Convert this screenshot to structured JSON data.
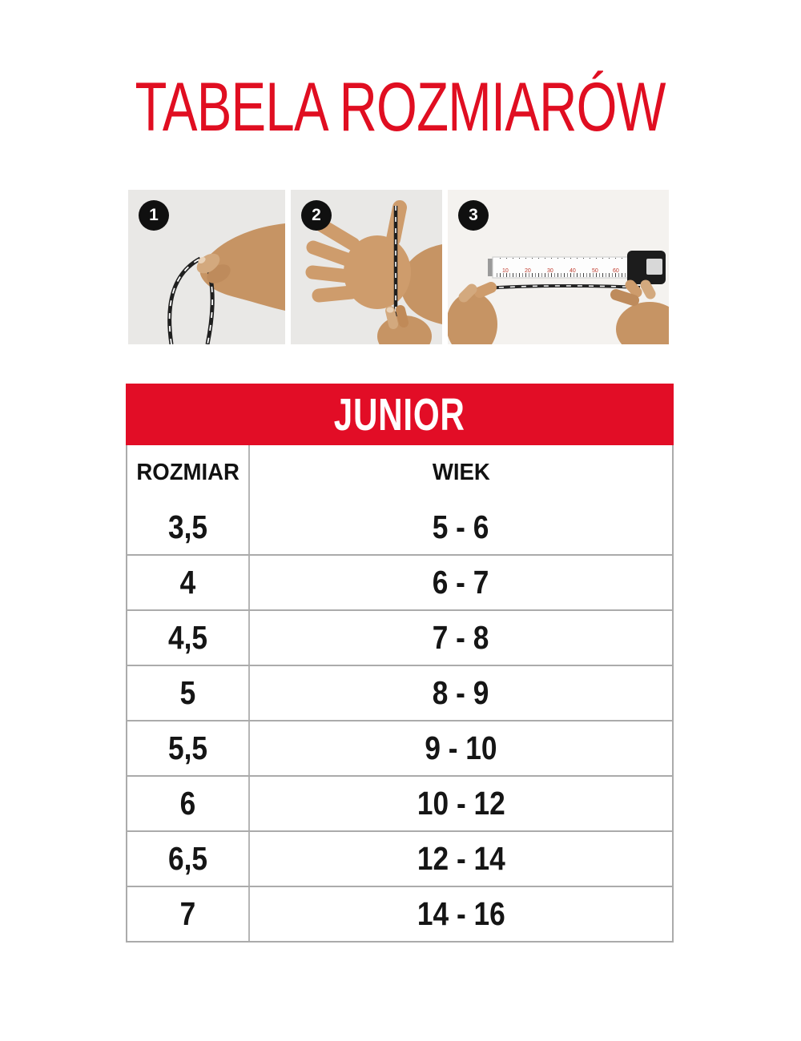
{
  "page": {
    "title": "TABELA ROZMIARÓW"
  },
  "colors": {
    "brand_red": "#e20d26",
    "title_red": "#e00e21",
    "table_border_gray": "#ababab",
    "panel_gray": "#e9e8e6"
  },
  "steps": [
    {
      "number": "1",
      "icon": "hand-holding-string-loop"
    },
    {
      "number": "2",
      "icon": "string-wrapped-around-palm"
    },
    {
      "number": "3",
      "icon": "measuring-string-with-tape"
    }
  ],
  "size_table": {
    "group": "JUNIOR",
    "columns": {
      "size": "ROZMIAR",
      "age": "WIEK"
    },
    "rows": [
      {
        "size": "3,5",
        "age": "5 - 6"
      },
      {
        "size": "4",
        "age": "6 - 7"
      },
      {
        "size": "4,5",
        "age": "7 - 8"
      },
      {
        "size": "5",
        "age": "8 - 9"
      },
      {
        "size": "5,5",
        "age": "9 - 10"
      },
      {
        "size": "6",
        "age": "10 - 12"
      },
      {
        "size": "6,5",
        "age": "12 - 14"
      },
      {
        "size": "7",
        "age": "14 - 16"
      }
    ]
  }
}
